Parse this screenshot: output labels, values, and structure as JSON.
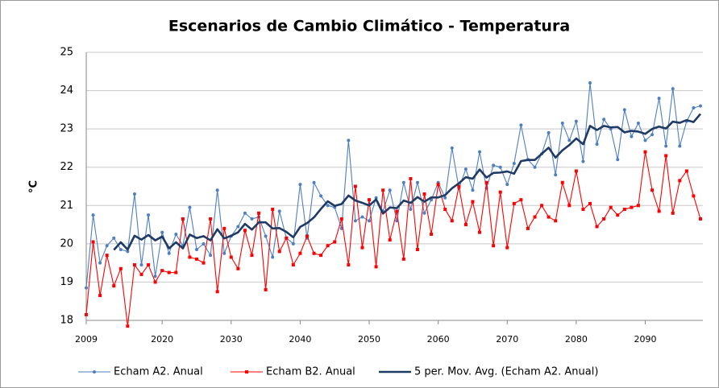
{
  "chart_data": {
    "type": "line",
    "title": "Escenarios de Cambio Climático - Temperatura",
    "y_label": "°C",
    "x": [
      2009,
      2010,
      2011,
      2012,
      2013,
      2014,
      2015,
      2016,
      2017,
      2018,
      2019,
      2020,
      2021,
      2022,
      2023,
      2024,
      2025,
      2026,
      2027,
      2028,
      2029,
      2030,
      2031,
      2032,
      2033,
      2034,
      2035,
      2036,
      2037,
      2038,
      2039,
      2040,
      2041,
      2042,
      2043,
      2044,
      2045,
      2046,
      2047,
      2048,
      2049,
      2050,
      2051,
      2052,
      2053,
      2054,
      2055,
      2056,
      2057,
      2058,
      2059,
      2060,
      2061,
      2062,
      2063,
      2064,
      2065,
      2066,
      2067,
      2068,
      2069,
      2070,
      2071,
      2072,
      2073,
      2074,
      2075,
      2076,
      2077,
      2078,
      2079,
      2080,
      2081,
      2082,
      2083,
      2084,
      2085,
      2086,
      2087,
      2088,
      2089,
      2090,
      2091,
      2092,
      2093,
      2094,
      2095,
      2096,
      2097,
      2098
    ],
    "xlim": [
      2009,
      2098
    ],
    "xticks": [
      2009,
      2020,
      2030,
      2040,
      2050,
      2060,
      2070,
      2080,
      2090
    ],
    "ylim": [
      18,
      25
    ],
    "yticks": [
      18,
      19,
      20,
      21,
      22,
      23,
      24,
      25
    ],
    "grid": true,
    "legend": "bottom",
    "series": [
      {
        "name": "Echam A2. Anual",
        "color": "#4f7fbf",
        "marker": "circle",
        "values": [
          18.85,
          20.75,
          19.5,
          19.95,
          20.15,
          19.85,
          19.8,
          21.3,
          19.45,
          20.75,
          19.15,
          20.3,
          19.75,
          20.25,
          19.95,
          20.95,
          19.85,
          20.0,
          19.7,
          21.4,
          19.75,
          20.2,
          20.45,
          20.8,
          20.65,
          20.7,
          20.2,
          19.65,
          20.85,
          20.15,
          20.0,
          21.55,
          20.15,
          21.6,
          21.25,
          21.0,
          20.95,
          20.4,
          22.7,
          20.6,
          20.7,
          20.6,
          21.2,
          20.85,
          21.4,
          20.6,
          21.6,
          20.9,
          21.6,
          20.8,
          21.15,
          21.6,
          21.2,
          22.5,
          21.45,
          21.95,
          21.4,
          22.4,
          21.45,
          22.05,
          22.0,
          21.55,
          22.1,
          23.1,
          22.2,
          22.0,
          22.35,
          22.9,
          21.8,
          23.15,
          22.7,
          23.2,
          22.15,
          24.2,
          22.6,
          23.25,
          23.0,
          22.2,
          23.5,
          22.8,
          23.15,
          22.7,
          22.85,
          23.8,
          22.55,
          24.05,
          22.55,
          23.2,
          23.55,
          23.6
        ]
      },
      {
        "name": "Echam B2. Anual",
        "color": "#ff0000",
        "marker": "square",
        "values": [
          18.15,
          20.05,
          18.65,
          19.7,
          18.9,
          19.35,
          17.85,
          19.45,
          19.2,
          19.45,
          19.0,
          19.3,
          19.25,
          19.25,
          20.65,
          19.65,
          19.6,
          19.5,
          20.65,
          18.75,
          20.4,
          19.65,
          19.35,
          20.35,
          19.7,
          20.8,
          18.8,
          20.9,
          19.8,
          20.15,
          19.45,
          19.75,
          20.2,
          19.75,
          19.7,
          19.95,
          20.05,
          20.65,
          19.45,
          21.5,
          19.9,
          21.15,
          19.4,
          21.4,
          20.1,
          20.85,
          19.6,
          21.7,
          19.85,
          21.3,
          20.25,
          21.55,
          20.9,
          20.6,
          21.5,
          20.5,
          21.1,
          20.3,
          21.6,
          19.95,
          21.35,
          19.9,
          21.05,
          21.15,
          20.4,
          20.7,
          21.0,
          20.7,
          20.6,
          21.6,
          21.0,
          21.9,
          20.9,
          21.05,
          20.45,
          20.65,
          20.95,
          20.75,
          20.9,
          20.95,
          21.0,
          22.4,
          21.4,
          20.85,
          22.3,
          20.8,
          21.65,
          21.9,
          21.25,
          20.65
        ]
      },
      {
        "name": "5 per. Mov. Avg. (Echam A2. Anual)",
        "color": "#1f3a64",
        "marker": "none",
        "values": [
          null,
          null,
          null,
          null,
          19.84,
          20.04,
          19.85,
          20.21,
          20.11,
          20.23,
          20.09,
          20.19,
          19.88,
          20.04,
          19.88,
          20.24,
          20.15,
          20.2,
          20.09,
          20.38,
          20.14,
          20.21,
          20.3,
          20.52,
          20.37,
          20.56,
          20.56,
          20.4,
          20.41,
          20.31,
          20.17,
          20.44,
          20.54,
          20.69,
          20.91,
          21.11,
          20.99,
          21.04,
          21.26,
          21.13,
          21.07,
          21.0,
          21.16,
          20.79,
          20.95,
          20.93,
          21.13,
          21.07,
          21.22,
          21.1,
          21.21,
          21.21,
          21.27,
          21.45,
          21.58,
          21.74,
          21.7,
          21.94,
          21.73,
          21.85,
          21.86,
          21.89,
          21.83,
          22.16,
          22.19,
          22.19,
          22.35,
          22.51,
          22.25,
          22.44,
          22.58,
          22.75,
          22.6,
          23.08,
          22.97,
          23.08,
          23.04,
          23.05,
          22.91,
          22.95,
          22.93,
          22.87,
          23.0,
          23.06,
          23.01,
          23.19,
          23.16,
          23.23,
          23.18,
          23.39
        ]
      }
    ]
  }
}
